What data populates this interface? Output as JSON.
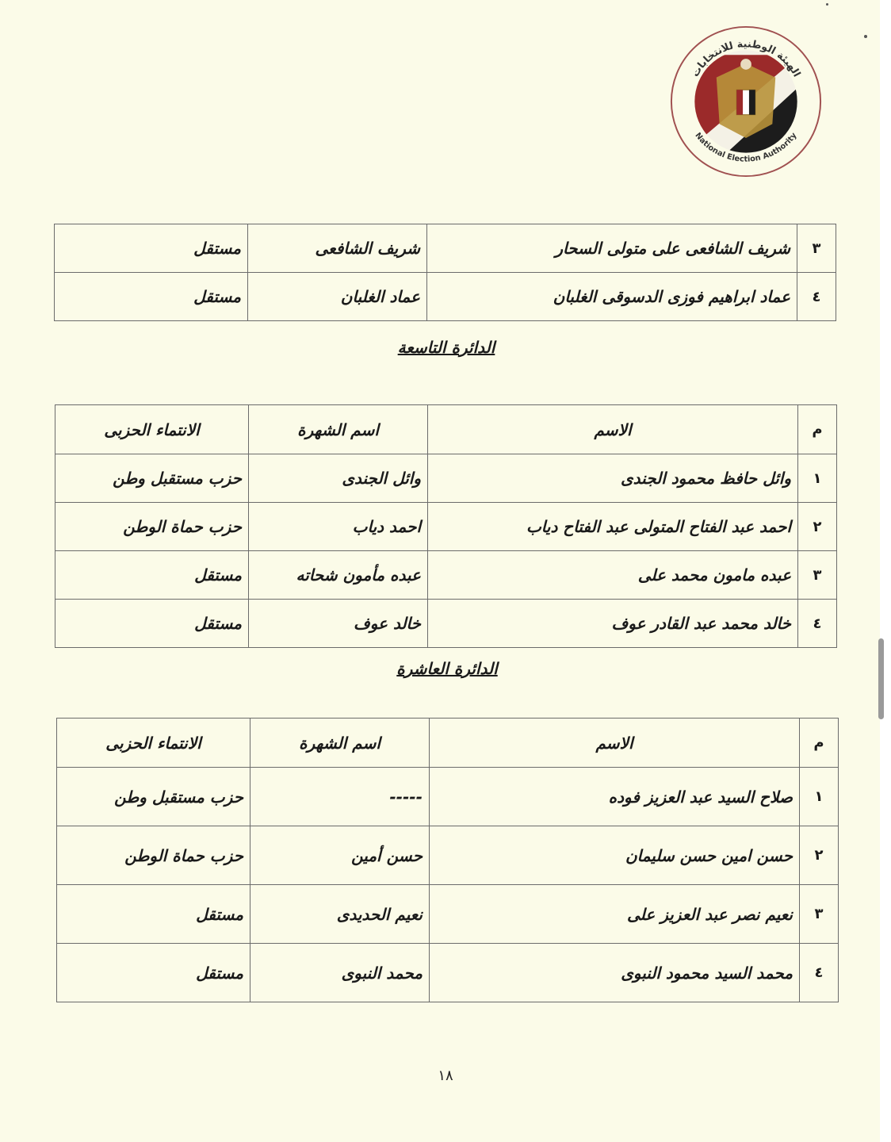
{
  "logo": {
    "text_ar": "الهيئة الوطنية للانتخابات",
    "text_en": "National Election Authority",
    "colors": {
      "red": "#9b2a2a",
      "white": "#f4f1e6",
      "black": "#1c1c1c",
      "gold": "#b8923a",
      "ring": "#a05050"
    }
  },
  "columns": {
    "num": "م",
    "name": "الاسم",
    "alias": "اسم الشهرة",
    "party": "الانتماء الحزبى"
  },
  "table_continued": {
    "rows": [
      {
        "num": "٣",
        "name": "شريف الشافعى على متولى السحار",
        "alias": "شريف الشافعى",
        "party": "مستقل"
      },
      {
        "num": "٤",
        "name": "عماد ابراهيم فوزى الدسوقى الغلبان",
        "alias": "عماد الغلبان",
        "party": "مستقل"
      }
    ]
  },
  "section_9": {
    "heading": "الدائرة التاسعة",
    "rows": [
      {
        "num": "١",
        "name": "وائل حافظ محمود الجندى",
        "alias": "وائل الجندى",
        "party": "حزب مستقبل وطن"
      },
      {
        "num": "٢",
        "name": "احمد عبد الفتاح المتولى عبد الفتاح دياب",
        "alias": "احمد دياب",
        "party": "حزب حماة الوطن"
      },
      {
        "num": "٣",
        "name": "عبده مامون محمد على",
        "alias": "عبده مأمون شحاته",
        "party": "مستقل"
      },
      {
        "num": "٤",
        "name": "خالد محمد عبد القادر عوف",
        "alias": "خالد عوف",
        "party": "مستقل"
      }
    ]
  },
  "section_10": {
    "heading": "الدائرة العاشرة",
    "rows": [
      {
        "num": "١",
        "name": "صلاح السيد عبد العزيز فوده",
        "alias": "-----",
        "party": "حزب مستقبل وطن"
      },
      {
        "num": "٢",
        "name": "حسن امين حسن سليمان",
        "alias": "حسن أمين",
        "party": "حزب حماة الوطن"
      },
      {
        "num": "٣",
        "name": "نعيم نصر عبد العزيز على",
        "alias": "نعيم الحديدى",
        "party": "مستقل"
      },
      {
        "num": "٤",
        "name": "محمد السيد محمود النبوى",
        "alias": "محمد النبوى",
        "party": "مستقل"
      }
    ]
  },
  "page_number": "١٨"
}
